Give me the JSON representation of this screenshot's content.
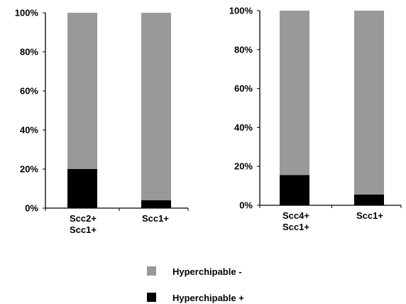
{
  "colors": {
    "negative": "#999999",
    "positive": "#000000",
    "axis": "#000000"
  },
  "legend": {
    "placement": "bottom-center",
    "items": [
      {
        "label": "Hyperchipable -",
        "color": "#999999"
      },
      {
        "label": "Hyperchipable +",
        "color": "#000000"
      }
    ]
  },
  "chart_data": [
    {
      "type": "bar",
      "stacked": true,
      "ylim": [
        0,
        100
      ],
      "yticks": [
        "0%",
        "20%",
        "40%",
        "60%",
        "80%",
        "100%"
      ],
      "categories": [
        [
          "Scc2+",
          "Scc1+"
        ],
        [
          "Scc1+"
        ]
      ],
      "series": [
        {
          "name": "Hyperchipable +",
          "values": [
            20,
            4
          ]
        },
        {
          "name": "Hyperchipable -",
          "values": [
            80,
            96
          ]
        }
      ]
    },
    {
      "type": "bar",
      "stacked": true,
      "ylim": [
        0,
        100
      ],
      "yticks": [
        "0%",
        "20%",
        "40%",
        "60%",
        "80%",
        "100%"
      ],
      "categories": [
        [
          "Scc4+",
          "Scc1+"
        ],
        [
          "Scc1+"
        ]
      ],
      "series": [
        {
          "name": "Hyperchipable +",
          "values": [
            15.5,
            5.5
          ]
        },
        {
          "name": "Hyperchipable -",
          "values": [
            84.5,
            94.5
          ]
        }
      ]
    }
  ]
}
